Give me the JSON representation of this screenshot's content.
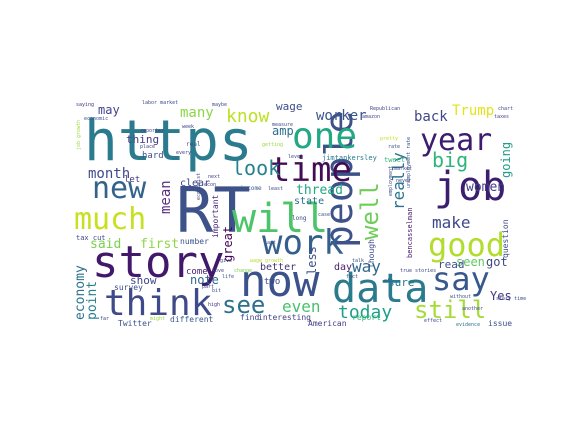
{
  "words": [
    {
      "text": "https",
      "color": "#2a7b8e",
      "weight": 10
    },
    {
      "text": "RT",
      "color": "#3d5288",
      "weight": 10
    },
    {
      "text": "story",
      "color": "#42186b",
      "weight": 9
    },
    {
      "text": "people",
      "color": "#3d5288",
      "weight": 8
    },
    {
      "text": "now",
      "color": "#3b528b",
      "weight": 8
    },
    {
      "text": "data",
      "color": "#2a7b8e",
      "weight": 8
    },
    {
      "text": "will",
      "color": "#4dc46a",
      "weight": 8
    },
    {
      "text": "one",
      "color": "#22a884",
      "weight": 8
    },
    {
      "text": "job",
      "color": "#3b1f6e",
      "weight": 7
    },
    {
      "text": "think",
      "color": "#3e4a89",
      "weight": 7
    },
    {
      "text": "time",
      "color": "#430d54",
      "weight": 7
    },
    {
      "text": "work",
      "color": "#355f8d",
      "weight": 7
    },
    {
      "text": "good",
      "color": "#b2dd2d",
      "weight": 7
    },
    {
      "text": "much",
      "color": "#c8e020",
      "weight": 7
    },
    {
      "text": "new",
      "color": "#33638d",
      "weight": 7
    },
    {
      "text": "year",
      "color": "#3b1c6e",
      "weight": 6
    },
    {
      "text": "say",
      "color": "#38588c",
      "weight": 6
    },
    {
      "text": "see",
      "color": "#2d708e",
      "weight": 6
    },
    {
      "text": "still",
      "color": "#a5db36",
      "weight": 5
    },
    {
      "text": "well",
      "color": "#6ece58",
      "weight": 5
    },
    {
      "text": "big",
      "color": "#2fb47c",
      "weight": 5
    },
    {
      "text": "look",
      "color": "#26828e",
      "weight": 4
    },
    {
      "text": "make",
      "color": "#3f4889",
      "weight": 4
    },
    {
      "text": "today",
      "color": "#1f9f88",
      "weight": 4
    },
    {
      "text": "even",
      "color": "#48c16e",
      "weight": 4
    },
    {
      "text": "know",
      "color": "#bddf26",
      "weight": 4
    },
    {
      "text": "really",
      "color": "#2b748e",
      "weight": 4
    },
    {
      "text": "mean",
      "color": "#5a2e80",
      "weight": 3
    },
    {
      "text": "way",
      "color": "#30698e",
      "weight": 3
    },
    {
      "text": "worker",
      "color": "#39568c",
      "weight": 3
    },
    {
      "text": "back",
      "color": "#3f4788",
      "weight": 3
    },
    {
      "text": "Trump",
      "color": "#e2e418",
      "weight": 3
    },
    {
      "text": "many",
      "color": "#8bd646",
      "weight": 3
    },
    {
      "text": "month",
      "color": "#3e4c8a",
      "weight": 3
    },
    {
      "text": "thread",
      "color": "#22a785",
      "weight": 3
    },
    {
      "text": "economy",
      "color": "#2c728e",
      "weight": 3
    },
    {
      "text": "point",
      "color": "#27808e",
      "weight": 3
    },
    {
      "text": "women",
      "color": "#433e85",
      "weight": 3
    },
    {
      "text": "going",
      "color": "#1f9e89",
      "weight": 3
    },
    {
      "text": "said",
      "color": "#7ad151",
      "weight": 2
    },
    {
      "text": "first",
      "color": "#8fd744",
      "weight": 2
    },
    {
      "text": "less",
      "color": "#3c508b",
      "weight": 2
    },
    {
      "text": "may",
      "color": "#414487",
      "weight": 2
    },
    {
      "text": "thing",
      "color": "#443b84",
      "weight": 2
    },
    {
      "text": "amp",
      "color": "#2e6e8e",
      "weight": 2
    },
    {
      "text": "wage",
      "color": "#3d4e8a",
      "weight": 2
    },
    {
      "text": "great",
      "color": "#450457",
      "weight": 2
    },
    {
      "text": "note",
      "color": "#31688e",
      "weight": 2
    },
    {
      "text": "seen",
      "color": "#5ec962",
      "weight": 2
    },
    {
      "text": "got",
      "color": "#3e4a89",
      "weight": 2
    },
    {
      "text": "Yes",
      "color": "#46337f",
      "weight": 2
    },
    {
      "text": "read",
      "color": "#3c4f8a",
      "weight": 2
    },
    {
      "text": "sure",
      "color": "#287d8e",
      "weight": 2
    },
    {
      "text": "day",
      "color": "#482173",
      "weight": 2
    },
    {
      "text": "show",
      "color": "#3e4989",
      "weight": 2
    },
    {
      "text": "better",
      "color": "#46307e",
      "weight": 2
    },
    {
      "text": "hard",
      "color": "#3b528b",
      "weight": 1
    },
    {
      "text": "let",
      "color": "#443a83",
      "weight": 1
    },
    {
      "text": "clear",
      "color": "#404688",
      "weight": 1
    },
    {
      "text": "state",
      "color": "#2d708e",
      "weight": 1
    },
    {
      "text": "two",
      "color": "#3f4788",
      "weight": 1
    },
    {
      "text": "survey",
      "color": "#3d4d8a",
      "weight": 1
    },
    {
      "text": "come",
      "color": "#482475",
      "weight": 1
    },
    {
      "text": "number",
      "color": "#3a538b",
      "weight": 1
    },
    {
      "text": "report",
      "color": "#35b779",
      "weight": 1
    },
    {
      "text": "find",
      "color": "#404588",
      "weight": 1
    },
    {
      "text": "interesting",
      "color": "#423f85",
      "weight": 1
    },
    {
      "text": "American",
      "color": "#433e85",
      "weight": 1
    },
    {
      "text": "different",
      "color": "#38598c",
      "weight": 1
    },
    {
      "text": "Twitter",
      "color": "#3b518b",
      "weight": 1
    },
    {
      "text": "question",
      "color": "#3e4c8a",
      "weight": 1
    },
    {
      "text": "tax cut",
      "color": "#3e4989",
      "weight": 1
    },
    {
      "text": "issue",
      "color": "#3d4e8a",
      "weight": 1
    },
    {
      "text": "jimtankersley",
      "color": "#287c8e",
      "weight": 1
    },
    {
      "text": "bencasselman",
      "color": "#481c6e",
      "weight": 1
    },
    {
      "text": "though",
      "color": "#3d4d8a",
      "weight": 1
    },
    {
      "text": "important",
      "color": "#482878",
      "weight": 1
    },
    {
      "text": "labor market",
      "color": "#3e4a89",
      "weight": 1
    },
    {
      "text": "Republican",
      "color": "#414487",
      "weight": 1
    },
    {
      "text": "saying",
      "color": "#46327e",
      "weight": 1
    },
    {
      "text": "economic",
      "color": "#3a548c",
      "weight": 1
    },
    {
      "text": "job growth",
      "color": "#9fda3a",
      "weight": 1
    },
    {
      "text": "unemployment rate",
      "color": "#3d4d8a",
      "weight": 1
    },
    {
      "text": "wage growth",
      "color": "#b5de2b",
      "weight": 1
    },
    {
      "text": "real",
      "color": "#3b528b",
      "weight": 1
    },
    {
      "text": "income",
      "color": "#39568c",
      "weight": 1
    },
    {
      "text": "tweet",
      "color": "#37b878",
      "weight": 1
    },
    {
      "text": "market",
      "color": "#3e4a89",
      "weight": 1
    },
    {
      "text": "reporter",
      "color": "#424186",
      "weight": 1
    },
    {
      "text": "every",
      "color": "#424186",
      "weight": 1
    },
    {
      "text": "place",
      "color": "#3f4788",
      "weight": 1
    },
    {
      "text": "getting",
      "color": "#9bd93c",
      "weight": 1
    },
    {
      "text": "least",
      "color": "#3c4f8a",
      "weight": 1
    },
    {
      "text": "long",
      "color": "#3e4989",
      "weight": 1
    },
    {
      "text": "case",
      "color": "#3b528b",
      "weight": 1
    },
    {
      "text": "etc",
      "color": "#3a538b",
      "weight": 1
    },
    {
      "text": "pretty",
      "color": "#c0df25",
      "weight": 1
    },
    {
      "text": "maybe",
      "color": "#3e4c8a",
      "weight": 1
    },
    {
      "text": "amazon",
      "color": "#404588",
      "weight": 1
    },
    {
      "text": "week",
      "color": "#424086",
      "weight": 1
    },
    {
      "text": "another",
      "color": "#3d4e8a",
      "weight": 1
    },
    {
      "text": "high",
      "color": "#46337f",
      "weight": 1
    },
    {
      "text": "change",
      "color": "#7fd34e",
      "weight": 1
    },
    {
      "text": "economist",
      "color": "#3e4a89",
      "weight": 1
    },
    {
      "text": "true stories",
      "color": "#404588",
      "weight": 1
    },
    {
      "text": "effect",
      "color": "#3d4d8a",
      "weight": 1
    },
    {
      "text": "evidence",
      "color": "#2c738e",
      "weight": 1
    },
    {
      "text": "without",
      "color": "#3b528b",
      "weight": 1
    },
    {
      "text": "chart",
      "color": "#3e4c8a",
      "weight": 1
    },
    {
      "text": "taxes",
      "color": "#424186",
      "weight": 1
    },
    {
      "text": "last",
      "color": "#3b528b",
      "weight": 1
    },
    {
      "text": "next",
      "color": "#404588",
      "weight": 1
    },
    {
      "text": "give",
      "color": "#3e4a89",
      "weight": 1
    },
    {
      "text": "part",
      "color": "#3d4d8a",
      "weight": 1
    },
    {
      "text": "life",
      "color": "#3b528b",
      "weight": 1
    },
    {
      "text": "love",
      "color": "#3e4989",
      "weight": 1
    },
    {
      "text": "far",
      "color": "#404588",
      "weight": 1
    },
    {
      "text": "bit",
      "color": "#3c4f8a",
      "weight": 1
    },
    {
      "text": "might",
      "color": "#9bd93c",
      "weight": 1
    },
    {
      "text": "measure",
      "color": "#3d4d8a",
      "weight": 1
    },
    {
      "text": "employment",
      "color": "#3e4a89",
      "weight": 1
    },
    {
      "text": "never",
      "color": "#3e4c8a",
      "weight": 1
    },
    {
      "text": "rate",
      "color": "#3b528b",
      "weight": 1
    },
    {
      "text": "econ",
      "color": "#404588",
      "weight": 1
    },
    {
      "text": "level",
      "color": "#3d4e8a",
      "weight": 1
    },
    {
      "text": "fact",
      "color": "#3e4989",
      "weight": 1
    },
    {
      "text": "talk",
      "color": "#3b528b",
      "weight": 1
    },
    {
      "text": "story time",
      "color": "#3d4d8a",
      "weight": 1
    }
  ]
}
